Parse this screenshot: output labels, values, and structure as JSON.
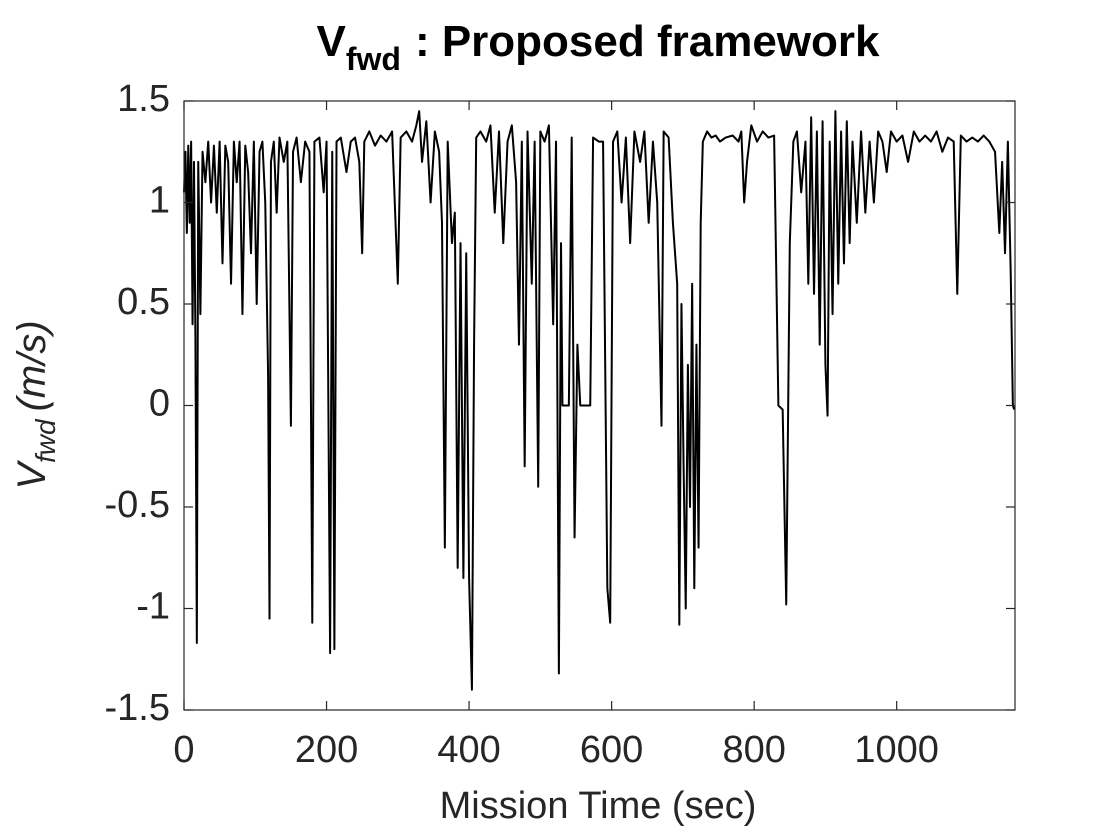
{
  "chart_data": {
    "type": "line",
    "title": {
      "main": "V",
      "sub": "fwd",
      "rest": ": Proposed framework"
    },
    "x_label": "Mission Time (sec)",
    "y_label": {
      "main": "V",
      "sub": "fwd",
      "rest": "(m/s)"
    },
    "color": "#000000",
    "xlim": [
      0,
      1166
    ],
    "xticks": [
      0,
      200,
      400,
      600,
      800,
      1000
    ],
    "ylim": [
      -1.5,
      1.5
    ],
    "yticks": [
      -1.5,
      -1,
      -0.5,
      0,
      0.5,
      1,
      1.5
    ],
    "x": [
      0,
      2,
      4,
      6,
      8,
      10,
      12,
      14,
      16,
      18,
      20,
      23,
      26,
      30,
      34,
      38,
      42,
      46,
      50,
      54,
      58,
      62,
      66,
      70,
      74,
      78,
      82,
      86,
      90,
      94,
      98,
      102,
      106,
      110,
      114,
      118,
      120,
      122,
      126,
      130,
      134,
      140,
      145,
      150,
      153,
      158,
      164,
      170,
      176,
      180,
      183,
      190,
      196,
      200,
      205,
      208,
      211,
      214,
      220,
      228,
      234,
      240,
      246,
      250,
      253,
      260,
      268,
      276,
      284,
      292,
      300,
      304,
      312,
      320,
      326,
      330,
      334,
      340,
      346,
      352,
      358,
      362,
      366,
      370,
      376,
      380,
      384,
      388,
      392,
      396,
      400,
      404,
      407,
      410,
      416,
      424,
      430,
      436,
      442,
      448,
      454,
      460,
      466,
      470,
      474,
      478,
      482,
      488,
      492,
      497,
      500,
      506,
      512,
      518,
      522,
      526,
      529,
      531,
      540,
      544,
      548,
      552,
      556,
      570,
      574,
      582,
      588,
      594,
      598,
      602,
      608,
      614,
      620,
      626,
      632,
      640,
      646,
      652,
      658,
      664,
      670,
      673,
      680,
      686,
      692,
      695,
      698,
      701,
      704,
      707,
      710,
      713,
      716,
      719,
      722,
      725,
      728,
      734,
      740,
      746,
      752,
      760,
      770,
      778,
      782,
      786,
      790,
      796,
      804,
      812,
      820,
      828,
      834,
      840,
      845,
      850,
      855,
      860,
      866,
      872,
      876,
      880,
      884,
      888,
      892,
      896,
      900,
      903,
      906,
      910,
      914,
      918,
      922,
      926,
      930,
      934,
      938,
      944,
      950,
      956,
      962,
      968,
      974,
      980,
      986,
      992,
      1000,
      1008,
      1016,
      1024,
      1032,
      1040,
      1048,
      1056,
      1064,
      1072,
      1080,
      1085,
      1090,
      1098,
      1106,
      1114,
      1122,
      1130,
      1138,
      1144,
      1148,
      1152,
      1156,
      1160,
      1163,
      1165
    ],
    "values": [
      1.05,
      1.25,
      0.85,
      1.28,
      0.9,
      1.3,
      0.4,
      1.2,
      0.35,
      -1.17,
      1.2,
      0.45,
      1.25,
      1.1,
      1.3,
      1.0,
      1.28,
      0.95,
      1.3,
      0.7,
      1.28,
      1.2,
      0.6,
      1.3,
      1.1,
      1.3,
      0.45,
      1.28,
      1.15,
      0.75,
      1.3,
      0.5,
      1.25,
      1.3,
      1.0,
      0.15,
      -1.05,
      1.2,
      1.3,
      0.95,
      1.32,
      1.2,
      1.3,
      -0.1,
      1.25,
      1.32,
      1.1,
      1.3,
      1.25,
      -1.07,
      1.3,
      1.32,
      1.05,
      1.3,
      -1.22,
      1.25,
      -1.2,
      1.3,
      1.32,
      1.15,
      1.3,
      1.32,
      1.2,
      0.75,
      1.3,
      1.35,
      1.28,
      1.33,
      1.3,
      1.35,
      0.6,
      1.32,
      1.35,
      1.3,
      1.38,
      1.45,
      1.2,
      1.4,
      1.0,
      1.35,
      1.25,
      0.9,
      -0.7,
      1.3,
      0.8,
      0.95,
      -0.8,
      0.8,
      -0.85,
      0.75,
      -0.85,
      -1.4,
      0.3,
      1.32,
      1.35,
      1.3,
      1.38,
      0.95,
      1.35,
      0.8,
      1.3,
      1.38,
      1.1,
      0.3,
      1.3,
      -0.3,
      1.35,
      0.6,
      1.3,
      -0.4,
      1.35,
      1.3,
      1.38,
      0.4,
      1.3,
      -1.32,
      0.8,
      0,
      0,
      1.32,
      -0.65,
      0.3,
      0,
      0,
      1.32,
      1.3,
      1.3,
      -0.9,
      -1.07,
      1.3,
      1.35,
      1.0,
      1.32,
      0.8,
      1.35,
      1.2,
      1.35,
      0.9,
      1.3,
      1.0,
      -0.1,
      1.35,
      1.32,
      0.9,
      0.6,
      -1.08,
      0.5,
      -0.3,
      -1.0,
      0.2,
      -0.5,
      0.6,
      -0.9,
      0.3,
      -0.7,
      0.9,
      1.3,
      1.35,
      1.32,
      1.33,
      1.3,
      1.32,
      1.33,
      1.3,
      1.35,
      1.0,
      1.2,
      1.38,
      1.3,
      1.35,
      1.32,
      1.33,
      0,
      -0.02,
      -0.98,
      0.8,
      1.3,
      1.35,
      1.05,
      1.3,
      0.6,
      1.42,
      0.55,
      1.35,
      0.3,
      1.4,
      0.2,
      -0.05,
      1.3,
      0.45,
      1.45,
      0.6,
      1.35,
      0.7,
      1.4,
      0.8,
      1.3,
      0.9,
      1.35,
      0.95,
      1.3,
      1.0,
      1.35,
      1.3,
      1.15,
      1.35,
      1.3,
      1.33,
      1.2,
      1.35,
      1.3,
      1.33,
      1.3,
      1.35,
      1.25,
      1.32,
      1.3,
      0.55,
      1.33,
      1.3,
      1.32,
      1.3,
      1.33,
      1.3,
      1.25,
      0.85,
      1.2,
      0.75,
      1.3,
      0.65,
      0,
      -0.02
    ]
  }
}
